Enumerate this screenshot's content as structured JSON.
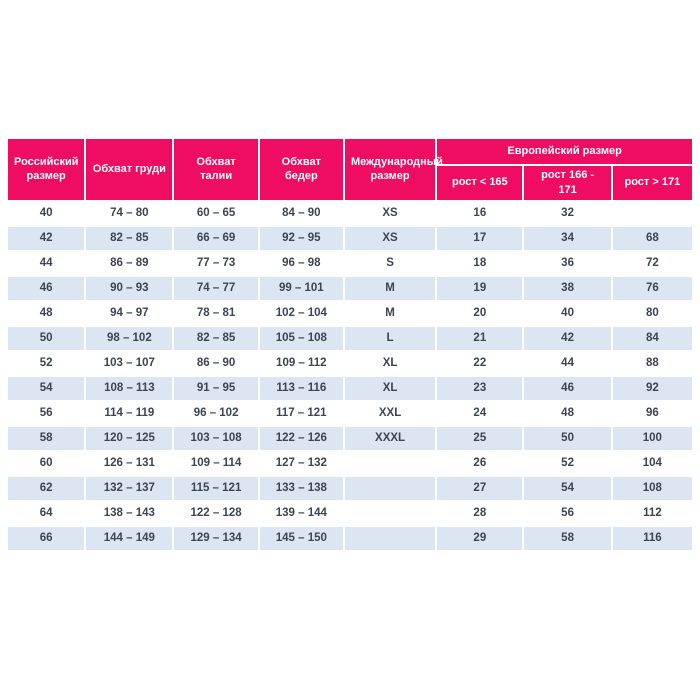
{
  "page": {
    "background": "#FFFFFF"
  },
  "table": {
    "colors": {
      "header_bg": "#EE0D60",
      "header_text": "#FFFFFF",
      "row_bg": "#FFFFFF",
      "row_alt_bg": "#DCE6F2",
      "cell_text": "#3D4453"
    },
    "main_columns": [
      "Российский размер",
      "Обхват груди",
      "Обхват талии",
      "Обхват бедер",
      "Международный размер"
    ],
    "european_group": {
      "label": "Европейский размер",
      "subcolumns": [
        "рост < 165",
        "рост 166 - 171",
        "рост > 171"
      ]
    },
    "rows": [
      [
        "40",
        "74 – 80",
        "60 – 65",
        "84 – 90",
        "XS",
        "16",
        "32",
        ""
      ],
      [
        "42",
        "82 – 85",
        "66 – 69",
        "92 – 95",
        "XS",
        "17",
        "34",
        "68"
      ],
      [
        "44",
        "86 – 89",
        "77 – 73",
        "96 – 98",
        "S",
        "18",
        "36",
        "72"
      ],
      [
        "46",
        "90 – 93",
        "74 – 77",
        "99 – 101",
        "M",
        "19",
        "38",
        "76"
      ],
      [
        "48",
        "94 – 97",
        "78 – 81",
        "102 – 104",
        "M",
        "20",
        "40",
        "80"
      ],
      [
        "50",
        "98 – 102",
        "82 – 85",
        "105 – 108",
        "L",
        "21",
        "42",
        "84"
      ],
      [
        "52",
        "103 – 107",
        "86 – 90",
        "109 – 112",
        "XL",
        "22",
        "44",
        "88"
      ],
      [
        "54",
        "108 – 113",
        "91 – 95",
        "113 – 116",
        "XL",
        "23",
        "46",
        "92"
      ],
      [
        "56",
        "114 – 119",
        "96 – 102",
        "117 – 121",
        "XXL",
        "24",
        "48",
        "96"
      ],
      [
        "58",
        "120 – 125",
        "103 – 108",
        "122 – 126",
        "XXXL",
        "25",
        "50",
        "100"
      ],
      [
        "60",
        "126 – 131",
        "109 – 114",
        "127 – 132",
        "",
        "26",
        "52",
        "104"
      ],
      [
        "62",
        "132 – 137",
        "115 – 121",
        "133 – 138",
        "",
        "27",
        "54",
        "108"
      ],
      [
        "64",
        "138 – 143",
        "122 – 128",
        "139 – 144",
        "",
        "28",
        "56",
        "112"
      ],
      [
        "66",
        "144 – 149",
        "129 – 134",
        "145 – 150",
        "",
        "29",
        "58",
        "116"
      ]
    ]
  }
}
